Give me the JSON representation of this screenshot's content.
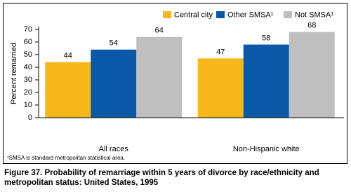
{
  "chart_data": {
    "type": "bar",
    "categories": [
      "All races",
      "Non-Hispanic white"
    ],
    "series": [
      {
        "name": "Central city",
        "color": "#f7b718",
        "values": [
          44,
          47
        ]
      },
      {
        "name": "Other SMSA¹",
        "color": "#0a58a8",
        "values": [
          54,
          58
        ]
      },
      {
        "name": "Not SMSA¹",
        "color": "#bfbfbf",
        "values": [
          64,
          68
        ]
      }
    ],
    "ylabel": "Percent remarried",
    "ylim": [
      0,
      70
    ],
    "yticks": [
      0,
      10,
      20,
      30,
      40,
      50,
      60,
      70
    ],
    "footnote": "¹SMSA is standard metropolitan statistical area.",
    "caption": "Figure 37. Probability of remarriage within 5 years of divorce by race/ethnicity and metropolitan status: United States, 1995"
  }
}
